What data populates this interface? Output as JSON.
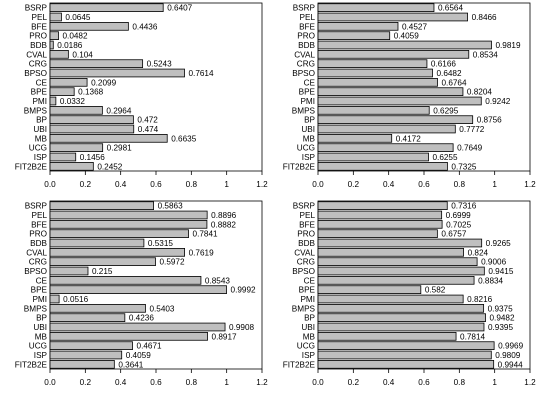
{
  "chart_data": [
    {
      "type": "bar",
      "orientation": "horizontal",
      "categories": [
        "BSRP",
        "PEL",
        "BFE",
        "PRO",
        "BDB",
        "CVAL",
        "CRG",
        "BPSO",
        "CE",
        "BPE",
        "PMI",
        "BMPS",
        "BP",
        "UBI",
        "MB",
        "UCG",
        "ISP",
        "FIT2B2E"
      ],
      "values": [
        0.6407,
        0.0645,
        0.4436,
        0.0482,
        0.0186,
        0.104,
        0.5243,
        0.7614,
        0.2099,
        0.1368,
        0.0332,
        0.2964,
        0.472,
        0.474,
        0.6635,
        0.2981,
        0.1456,
        0.2452
      ],
      "value_labels": [
        "0.6407",
        "0.0645",
        "0.4436",
        "0.0482",
        "0.0186",
        "0.104",
        "0.5243",
        "0.7614",
        "0.2099",
        "0.1368",
        "0.0332",
        "0.2964",
        "0.472",
        "0.474",
        "0.6635",
        "0.2981",
        "0.1456",
        "0.2452"
      ],
      "xlim": [
        0,
        1.2
      ],
      "xticks": [
        "0.0",
        "0.2",
        "0.4",
        "0.6",
        "0.8",
        "1",
        "1.2"
      ],
      "xtick_values": [
        0,
        0.2,
        0.4,
        0.6,
        0.8,
        1.0,
        1.2
      ],
      "bar_color": "#bfbfbf"
    },
    {
      "type": "bar",
      "orientation": "horizontal",
      "categories": [
        "BSRP",
        "PEL",
        "BFE",
        "PRO",
        "BDB",
        "CVAL",
        "CRG",
        "BPSO",
        "CE",
        "BPE",
        "PMI",
        "BMPS",
        "BP",
        "UBI",
        "MB",
        "UCG",
        "ISP",
        "FIT2B2E"
      ],
      "values": [
        0.6564,
        0.8466,
        0.4527,
        0.4059,
        0.9819,
        0.8534,
        0.6166,
        0.6482,
        0.6764,
        0.8204,
        0.9242,
        0.6295,
        0.8756,
        0.7772,
        0.4172,
        0.7649,
        0.6255,
        0.7325
      ],
      "value_labels": [
        "0.6564",
        "0.8466",
        "0.4527",
        "0.4059",
        "0.9819",
        "0.8534",
        "0.6166",
        "0.6482",
        "0.6764",
        "0.8204",
        "0.9242",
        "0.6295",
        "0.8756",
        "0.7772",
        "0.4172",
        "0.7649",
        "0.6255",
        "0.7325"
      ],
      "xlim": [
        0,
        1.2
      ],
      "xticks": [
        "0.0",
        "0.2",
        "0.4",
        "0.6",
        "0.8",
        "1",
        "1.2"
      ],
      "xtick_values": [
        0,
        0.2,
        0.4,
        0.6,
        0.8,
        1.0,
        1.2
      ],
      "bar_color": "#bfbfbf"
    },
    {
      "type": "bar",
      "orientation": "horizontal",
      "categories": [
        "BSRP",
        "PEL",
        "BFE",
        "PRO",
        "BDB",
        "CVAL",
        "CRG",
        "BPSO",
        "CE",
        "BPE",
        "PMI",
        "BMPS",
        "BP",
        "UBI",
        "MB",
        "UCG",
        "ISP",
        "FIT2B2E"
      ],
      "values": [
        0.5863,
        0.8896,
        0.8882,
        0.7841,
        0.5315,
        0.7619,
        0.5972,
        0.215,
        0.8543,
        0.9992,
        0.0516,
        0.5403,
        0.4236,
        0.9908,
        0.8917,
        0.4671,
        0.4059,
        0.3641
      ],
      "value_labels": [
        "0.5863",
        "0.8896",
        "0.8882",
        "0.7841",
        "0.5315",
        "0.7619",
        "0.5972",
        "0.215",
        "0.8543",
        "0.9992",
        "0.0516",
        "0.5403",
        "0.4236",
        "0.9908",
        "0.8917",
        "0.4671",
        "0.4059",
        "0.3641"
      ],
      "xlim": [
        0,
        1.2
      ],
      "xticks": [
        "0.0",
        "0.2",
        "0.4",
        "0.6",
        "0.8",
        "1",
        "1.2"
      ],
      "xtick_values": [
        0,
        0.2,
        0.4,
        0.6,
        0.8,
        1.0,
        1.2
      ],
      "bar_color": "#bfbfbf"
    },
    {
      "type": "bar",
      "orientation": "horizontal",
      "categories": [
        "BSRP",
        "PEL",
        "BFE",
        "PRO",
        "BDB",
        "CVAL",
        "CRG",
        "BPSO",
        "CE",
        "BPE",
        "PMI",
        "BMPS",
        "BP",
        "UBI",
        "MB",
        "UCG",
        "ISP",
        "FIT2B2E"
      ],
      "values": [
        0.7316,
        0.6999,
        0.7025,
        0.6757,
        0.9265,
        0.824,
        0.9006,
        0.9415,
        0.8834,
        0.582,
        0.8216,
        0.9375,
        0.9482,
        0.9395,
        0.7814,
        0.9969,
        0.9809,
        0.9944
      ],
      "value_labels": [
        "0.7316",
        "0.6999",
        "0.7025",
        "0.6757",
        "0.9265",
        "0.824",
        "0.9006",
        "0.9415",
        "0.8834",
        "0.582",
        "0.8216",
        "0.9375",
        "0.9482",
        "0.9395",
        "0.7814",
        "0.9969",
        "0.9809",
        "0.9944"
      ],
      "xlim": [
        0,
        1.2
      ],
      "xticks": [
        "0.0",
        "0.2",
        "0.4",
        "0.6",
        "0.8",
        "1",
        "1.2"
      ],
      "xtick_values": [
        0,
        0.2,
        0.4,
        0.6,
        0.8,
        1.0,
        1.2
      ],
      "bar_color": "#bfbfbf"
    }
  ]
}
